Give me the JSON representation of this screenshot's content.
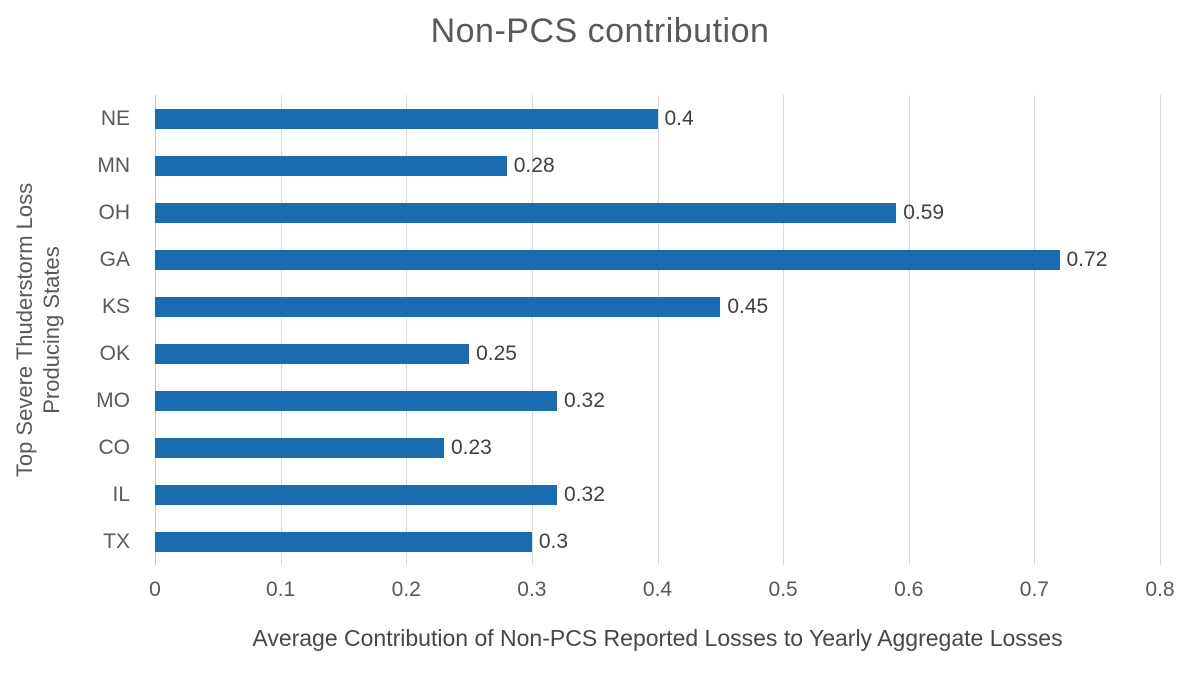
{
  "chart_data": {
    "type": "bar",
    "orientation": "horizontal",
    "title": "Non-PCS contribution",
    "categories": [
      "NE",
      "MN",
      "OH",
      "GA",
      "KS",
      "OK",
      "MO",
      "CO",
      "IL",
      "TX"
    ],
    "values": [
      0.4,
      0.28,
      0.59,
      0.72,
      0.45,
      0.25,
      0.32,
      0.23,
      0.32,
      0.3
    ],
    "value_labels": [
      "0.4",
      "0.28",
      "0.59",
      "0.72",
      "0.45",
      "0.25",
      "0.32",
      "0.23",
      "0.32",
      "0.3"
    ],
    "xlabel": "Average Contribution of Non-PCS Reported Losses to Yearly Aggregate Losses",
    "ylabel": "Top Severe Thuderstorm Loss\nProducing States",
    "xlim": [
      0,
      0.8
    ],
    "xticks": [
      0,
      0.1,
      0.2,
      0.3,
      0.4,
      0.5,
      0.6,
      0.7,
      0.8
    ],
    "xtick_labels": [
      "0",
      "0.1",
      "0.2",
      "0.3",
      "0.4",
      "0.5",
      "0.6",
      "0.7",
      "0.8"
    ],
    "grid": "vertical",
    "legend": "none",
    "colors": {
      "bar": "#1a6cb0",
      "gridline": "#d9d9d9",
      "axis_text": "#595959",
      "data_label": "#404040",
      "title": "#595959"
    }
  }
}
